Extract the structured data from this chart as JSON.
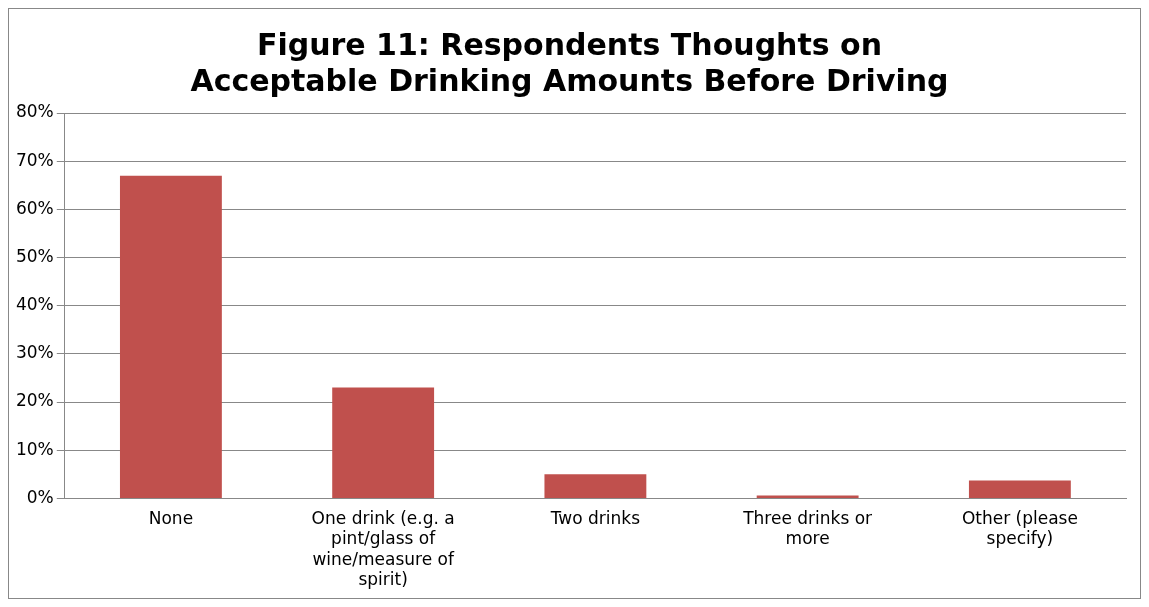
{
  "chart_data": {
    "type": "bar",
    "title": "Figure 11: Respondents Thoughts on Acceptable Drinking Amounts Before Driving",
    "categories": [
      "None",
      "One drink (e.g. a pint/glass of wine/measure of spirit)",
      "Two drinks",
      "Three drinks or more",
      "Other (please specify)"
    ],
    "values": [
      67,
      23,
      5,
      0.6,
      3.7
    ],
    "color": "#c0504d",
    "ylim": [
      0,
      80
    ],
    "yticks": [
      {
        "value": 0,
        "label": "0%"
      },
      {
        "value": 10,
        "label": "10%"
      },
      {
        "value": 20,
        "label": "20%"
      },
      {
        "value": 30,
        "label": "30%"
      },
      {
        "value": 40,
        "label": "40%"
      },
      {
        "value": 50,
        "label": "50%"
      },
      {
        "value": 60,
        "label": "60%"
      },
      {
        "value": 70,
        "label": "70%"
      },
      {
        "value": 80,
        "label": "80%"
      }
    ],
    "grid": "y",
    "legend": false
  }
}
